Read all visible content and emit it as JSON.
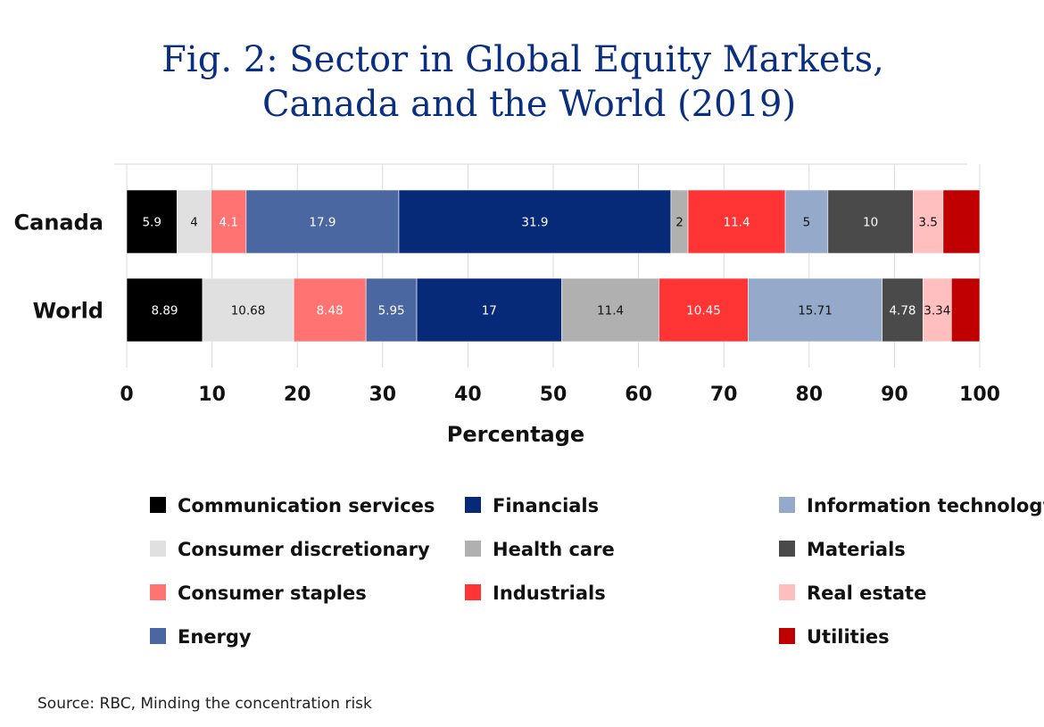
{
  "chart_data": {
    "type": "bar",
    "orientation": "horizontal",
    "stacked": true,
    "title_lines": [
      "Fig. 2: Sector in Global Equity Markets,",
      "Canada and the World (2019)"
    ],
    "xlabel": "Percentage",
    "ylabel": "",
    "xlim": [
      0,
      100
    ],
    "xticks": [
      0,
      10,
      20,
      30,
      40,
      50,
      60,
      70,
      80,
      90,
      100
    ],
    "grid": true,
    "legend_position": "bottom",
    "categories": [
      "Canada",
      "World"
    ],
    "series": [
      {
        "name": "Communication services",
        "color": "#000000",
        "values": [
          5.9,
          8.89
        ],
        "labels": [
          "5.9",
          "8.89"
        ],
        "label_color": "#ffffff"
      },
      {
        "name": "Consumer discretionary",
        "color": "#e0e0e0",
        "values": [
          4,
          10.68
        ],
        "labels": [
          "4",
          "10.68"
        ],
        "label_color": "#111111"
      },
      {
        "name": "Consumer staples",
        "color": "#ff7373",
        "values": [
          4.1,
          8.48
        ],
        "labels": [
          "4.1",
          "8.48"
        ],
        "label_color": "#ffffff"
      },
      {
        "name": "Energy",
        "color": "#4a67a1",
        "values": [
          17.9,
          5.95
        ],
        "labels": [
          "17.9",
          "5.95"
        ],
        "label_color": "#ffffff"
      },
      {
        "name": "Financials",
        "color": "#062a78",
        "values": [
          31.9,
          17
        ],
        "labels": [
          "31.9",
          "17"
        ],
        "label_color": "#ffffff"
      },
      {
        "name": "Health care",
        "color": "#b0b0b0",
        "values": [
          2,
          11.4
        ],
        "labels": [
          "2",
          "11.4"
        ],
        "label_color": "#111111"
      },
      {
        "name": "Industrials",
        "color": "#ff3535",
        "values": [
          11.4,
          10.45
        ],
        "labels": [
          "11.4",
          "10.45"
        ],
        "label_color": "#ffffff"
      },
      {
        "name": "Information technology",
        "color": "#95a9cb",
        "values": [
          5,
          15.71
        ],
        "labels": [
          "5",
          "15.71"
        ],
        "label_color": "#111111"
      },
      {
        "name": "Materials",
        "color": "#4a4a4a",
        "values": [
          10,
          4.78
        ],
        "labels": [
          "10",
          "4.78"
        ],
        "label_color": "#ffffff"
      },
      {
        "name": "Real estate",
        "color": "#ffbfbf",
        "values": [
          3.5,
          3.34
        ],
        "labels": [
          "3.5",
          "3.34"
        ],
        "label_color": "#111111"
      },
      {
        "name": "Utilities",
        "color": "#c00000",
        "values": [
          3.4,
          3.26
        ],
        "labels": [
          "",
          ""
        ],
        "label_color": "#ffffff"
      }
    ],
    "source": "Source: RBC, Minding the concentration risk"
  }
}
